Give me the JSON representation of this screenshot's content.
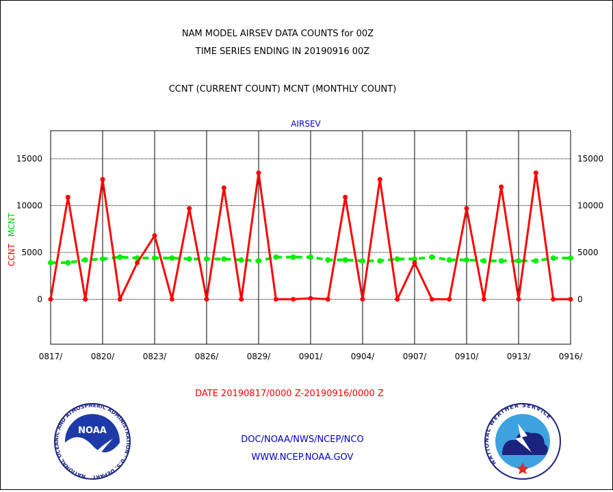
{
  "header": {
    "title_line1": "NAM MODEL AIRSEV DATA COUNTS for 00Z",
    "title_line2": "TIME SERIES ENDING IN 20190916 00Z",
    "subtitle": "CCNT (CURRENT COUNT) MCNT (MONTHLY COUNT)"
  },
  "footer": {
    "date_range": "DATE 20190817/0000 Z-20190916/0000 Z",
    "org": "DOC/NOAA/NWS/NCEP/NCO",
    "url": "WWW.NCEP.NOAA.GOV",
    "noaa_logo_text": "NOAA",
    "noaa_ring_text": "NATIONAL OCEANIC AND ATMOSPHERIC ADMINISTRATION · U.S. DEPARTMENT OF COMMERCE ·",
    "nws_ring_text": "NATIONAL WEATHER SERVICE"
  },
  "colors": {
    "ccnt": "#ff0000",
    "mcnt": "#00ee00",
    "title": "#000000",
    "plot_title": "#0000cc",
    "footer_link": "#0000cc",
    "date_text": "#ff0000"
  },
  "chart_data": {
    "type": "line",
    "title": "AIRSEV",
    "ylabel_ccnt": "CCNT",
    "ylabel_mcnt": "MCNT",
    "ylim": [
      -4800,
      18000
    ],
    "yticks": [
      0,
      5000,
      10000,
      15000
    ],
    "ytick_labels": [
      "0",
      "5000",
      "10000",
      "15000"
    ],
    "grid": true,
    "x": [
      "0817",
      "0818",
      "0819",
      "0820",
      "0821",
      "0822",
      "0823",
      "0824",
      "0825",
      "0826",
      "0827",
      "0828",
      "0829",
      "0830",
      "0831",
      "0901",
      "0902",
      "0903",
      "0904",
      "0905",
      "0906",
      "0907",
      "0908",
      "0909",
      "0910",
      "0911",
      "0912",
      "0913",
      "0914",
      "0915",
      "0916"
    ],
    "xtick_labels": [
      "0817/",
      "0820/",
      "0823/",
      "0826/",
      "0829/",
      "0901/",
      "0904/",
      "0907/",
      "0910/",
      "0913/",
      "0916/"
    ],
    "xtick_indices": [
      0,
      3,
      6,
      9,
      12,
      15,
      18,
      21,
      24,
      27,
      30
    ],
    "series": [
      {
        "name": "CCNT",
        "values": [
          0,
          10900,
          0,
          12800,
          0,
          3900,
          6800,
          0,
          9700,
          0,
          11900,
          0,
          13500,
          0,
          0,
          100,
          0,
          10900,
          0,
          12800,
          0,
          3900,
          0,
          0,
          9700,
          0,
          12000,
          0,
          13500,
          0,
          0
        ]
      },
      {
        "name": "MCNT",
        "values": [
          3900,
          3900,
          4200,
          4300,
          4500,
          4400,
          4400,
          4400,
          4300,
          4300,
          4300,
          4200,
          4100,
          4500,
          4500,
          4500,
          4200,
          4200,
          4100,
          4100,
          4300,
          4300,
          4500,
          4200,
          4200,
          4100,
          4100,
          4100,
          4100,
          4400,
          4400
        ]
      }
    ]
  }
}
